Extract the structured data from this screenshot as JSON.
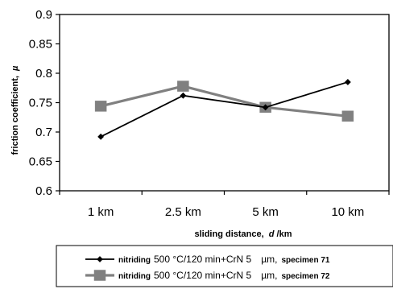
{
  "chart_data": {
    "type": "line",
    "categories": [
      "1 km",
      "2.5 km",
      "5 km",
      "10 km"
    ],
    "series": [
      {
        "name_parts": [
          "nitriding",
          "500 °C/120 min+CrN 5",
          "µm,",
          "specimen 71"
        ],
        "color": "#000000",
        "marker": "diamond",
        "values": [
          0.692,
          0.762,
          0.742,
          0.785
        ]
      },
      {
        "name_parts": [
          "nitriding",
          "500 °C/120 min+CrN 5",
          "µm,",
          "specimen 72"
        ],
        "color": "#808080",
        "marker": "square",
        "values": [
          0.744,
          0.778,
          0.742,
          0.727
        ]
      }
    ],
    "ylim": [
      0.6,
      0.9
    ],
    "yticks": [
      "0.6",
      "0.65",
      "0.7",
      "0.75",
      "0.8",
      "0.85",
      "0.9"
    ],
    "ylabel_parts": [
      "friction coefficient,",
      "µ"
    ],
    "xlabel_parts": [
      "sliding distance,",
      "d",
      "/km"
    ],
    "grid": false,
    "legend_position": "bottom"
  }
}
